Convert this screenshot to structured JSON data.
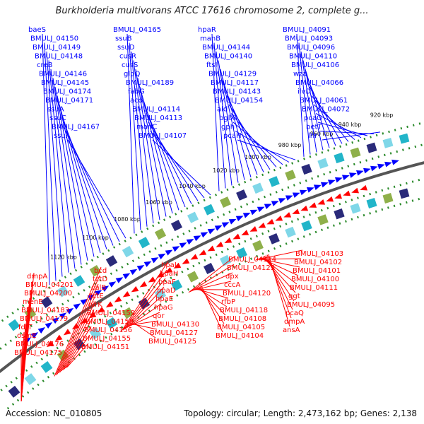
{
  "title": "Burkholderia multivorans ATCC 17616 chromosome 2, complete g...",
  "accession_text": "Accession: NC_010805",
  "summary_text": "Topology: circular; Length: 2,473,162 bp; Genes: 2,138",
  "kbp_ticks": [
    "920 kbp",
    "940 kbp",
    "960 kbp",
    "980 kbp",
    "1000 kbp",
    "1020 kbp",
    "1040 kbp",
    "1060 kbp",
    "1080 kbp",
    "1100 kbp",
    "1120 kbp"
  ],
  "colors": {
    "forward_strand": "#0000ff",
    "reverse_strand": "#ff0000",
    "backbone": "#555555",
    "tick_dots": "#2a8a2a"
  },
  "labels_forward": [
    "baeS",
    "BMULJ_04150",
    "BMULJ_04149",
    "BMULJ_04148",
    "creB",
    "BMULJ_04146",
    "BMULJ_04145",
    "BMULJ_04174",
    "BMULJ_04171",
    "ssuA",
    "ssuC",
    "BMULJ_04167",
    "ssuA",
    "BMULJ_04165",
    "ssuB",
    "ssuD",
    "cusR",
    "cusS",
    "glpQ",
    "BMULJ_04189",
    "fabG",
    "acd",
    "BMULJ_04114",
    "BMULJ_04113",
    "manC",
    "BMULJ_04107",
    "hpaR",
    "manB",
    "BMULJ_04144",
    "BMULJ_04140",
    "ftsI",
    "BMULJ_04129",
    "BMULJ_04117",
    "BMULJ_04143",
    "BMULJ_04154",
    "ald",
    "bglX",
    "gph",
    "pcaH",
    "BMULJ_04091",
    "BMULJ_04093",
    "BMULJ_04096",
    "BMULJ_04110",
    "BMULJ_04106",
    "wza",
    "BMULJ_04066",
    "ilvD",
    "BMULJ_04061",
    "BMULJ_04072",
    "pcaG",
    "betT",
    "lhr"
  ],
  "labels_reverse": [
    "ansA",
    "dmpA",
    "pcaQ",
    "BMULJ_04095",
    "ggt",
    "BMULJ_04111",
    "BMULJ_04100",
    "BMULJ_04101",
    "BMULJ_04102",
    "BMULJ_04103",
    "BMULJ_04104",
    "BMULJ_04105",
    "BMULJ_04108",
    "BMULJ_04118",
    "rfbP",
    "BMULJ_04120",
    "cccA",
    "dpx",
    "BMULJ_04123",
    "BMULJ_04124",
    "BMULJ_04125",
    "BMULJ_04127",
    "BMULJ_04130",
    "qor",
    "hpaG",
    "hpaE",
    "hpaD",
    "hpaF",
    "hpaH",
    "hpaI",
    "BMULJ_04151",
    "BMULJ_04155",
    "BMULJ_04156",
    "BMULJ_04158",
    "BMULJ_04159",
    "nirK",
    "tctE",
    "calB",
    "tctD",
    "bcd",
    "BMULJ_04175",
    "BMULJ_04176",
    "osmE",
    "fdfT",
    "BMULJ_04179",
    "BMULJ_04183",
    "menE",
    "BMULJ_04200",
    "BMULJ_04201",
    "dmpA"
  ]
}
